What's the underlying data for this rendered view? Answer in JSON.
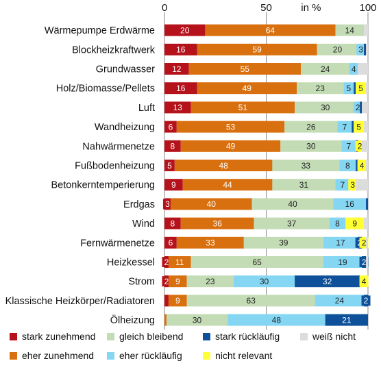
{
  "chart_data": {
    "type": "bar",
    "orientation": "horizontal",
    "stacked": true,
    "xlim": [
      0,
      100
    ],
    "x_ticks": [
      "0",
      "50",
      "100"
    ],
    "unit_label": "in %",
    "grid": "vertical lines at 0, 50, 100",
    "legend_position": "bottom",
    "categories": [
      "Wärmepumpe Erdwärme",
      "Blockheizkraftwerk",
      "Grundwasser",
      "Holz/Biomasse/Pellets",
      "Luft",
      "Wandheizung",
      "Nahwärmenetze",
      "Fußbodenheizung",
      "Betonkerntemperierung",
      "Erdgas",
      "Wind",
      "Fernwärmenetze",
      "Heizkessel",
      "Strom",
      "Klassische Heizkörper/Radiatoren",
      "Ölheizung"
    ],
    "series": [
      {
        "name": "stark zunehmend",
        "color": "#b5121b",
        "label_color": "#ffffff",
        "values": [
          20,
          16,
          12,
          16,
          13,
          6,
          8,
          5,
          9,
          3,
          8,
          6,
          2,
          2,
          2,
          0
        ]
      },
      {
        "name": "eher zunehmend",
        "color": "#d9700f",
        "label_color": "#ffffff",
        "values": [
          64,
          59,
          55,
          49,
          51,
          53,
          49,
          48,
          44,
          40,
          36,
          33,
          11,
          9,
          9,
          1
        ]
      },
      {
        "name": "gleich bleibend",
        "color": "#c4dcb6",
        "label_color": "#222222",
        "values": [
          14,
          20,
          24,
          23,
          30,
          26,
          30,
          33,
          31,
          40,
          37,
          39,
          65,
          23,
          63,
          30
        ]
      },
      {
        "name": "eher rückläufig",
        "color": "#84d6f3",
        "label_color": "#222222",
        "values": [
          0,
          3,
          4,
          5,
          2,
          7,
          7,
          8,
          7,
          16,
          8,
          17,
          19,
          30,
          24,
          48
        ]
      },
      {
        "name": "stark rückläufig",
        "color": "#0e519a",
        "label_color": "#ffffff",
        "values": [
          0,
          1,
          0,
          1,
          1,
          1,
          1,
          1,
          0,
          1,
          0,
          2,
          2,
          32,
          2,
          21
        ]
      },
      {
        "name": "nicht relevant",
        "color": "#ffff33",
        "label_color": "#222222",
        "values": [
          0,
          0,
          0,
          5,
          0,
          5,
          2,
          4,
          3,
          0,
          9,
          2,
          0,
          4,
          0,
          0
        ]
      },
      {
        "name": "weiß nicht",
        "color": "#dcdcdc",
        "label_color": "#222222",
        "values": [
          2,
          1,
          5,
          1,
          3,
          2,
          3,
          1,
          6,
          0,
          2,
          1,
          1,
          0,
          0,
          0
        ]
      }
    ],
    "data_labels": [
      [
        "20",
        "64",
        "14",
        "",
        "",
        "",
        ""
      ],
      [
        "16",
        "59",
        "20",
        "3",
        "",
        "",
        ""
      ],
      [
        "12",
        "55",
        "24",
        "4",
        "",
        "",
        ""
      ],
      [
        "16",
        "49",
        "23",
        "5",
        "",
        "5",
        ""
      ],
      [
        "13",
        "51",
        "30",
        "2",
        "",
        "",
        ""
      ],
      [
        "6",
        "53",
        "26",
        "7",
        "",
        "5",
        ""
      ],
      [
        "8",
        "49",
        "30",
        "7",
        "",
        "2",
        ""
      ],
      [
        "5",
        "48",
        "33",
        "8",
        "",
        "4",
        ""
      ],
      [
        "9",
        "44",
        "31",
        "7",
        "",
        "3",
        ""
      ],
      [
        "3",
        "40",
        "40",
        "16",
        "",
        "",
        ""
      ],
      [
        "8",
        "36",
        "37",
        "8",
        "",
        "9",
        ""
      ],
      [
        "6",
        "33",
        "39",
        "17",
        "2",
        "2",
        ""
      ],
      [
        "2",
        "11",
        "65",
        "19",
        "2",
        "",
        ""
      ],
      [
        "2",
        "9",
        "23",
        "30",
        "32",
        "4",
        ""
      ],
      [
        "",
        "9",
        "63",
        "24",
        "2",
        "",
        ""
      ],
      [
        "",
        "",
        "30",
        "48",
        "21",
        "",
        ""
      ]
    ],
    "legend_order": [
      "stark zunehmend",
      "gleich bleibend",
      "stark rückläufig",
      "weiß nicht",
      "eher zunehmend",
      "eher rückläufig",
      "nicht relevant"
    ]
  }
}
